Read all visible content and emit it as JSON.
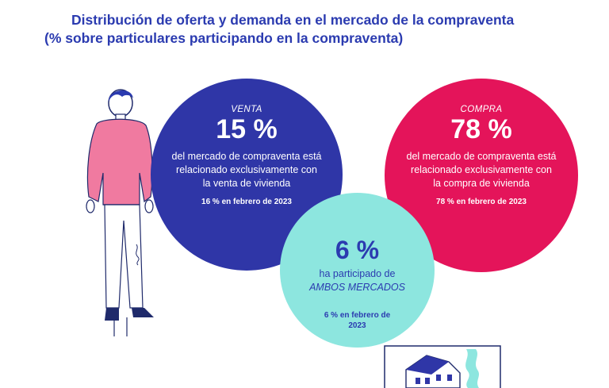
{
  "title": {
    "line1": "Distribución de oferta y demanda en el mercado de la compraventa",
    "line2": "(% sobre particulares participando en la compraventa)"
  },
  "chart_data": {
    "type": "venn",
    "title": "Distribución de oferta y demanda en el mercado de la compraventa",
    "subtitle": "(% sobre particulares participando en la compraventa)",
    "sets": [
      {
        "name": "VENTA",
        "value": 15,
        "value_label": "15 %",
        "description": "del mercado de compraventa está relacionado exclusivamente con la venta de vivienda",
        "previous_value": 16,
        "previous_label": "16 % en febrero de 2023"
      },
      {
        "name": "COMPRA",
        "value": 78,
        "value_label": "78 %",
        "description": "del mercado de compraventa está relacionado exclusivamente con la compra de vivienda",
        "previous_value": 78,
        "previous_label": "78 % en febrero de 2023"
      },
      {
        "name": "AMBOS MERCADOS",
        "value": 6,
        "value_label": "6 %",
        "description_prefix": "ha participado de",
        "description_emph": "AMBOS MERCADOS",
        "previous_value": 6,
        "previous_label": "6 % en febrero de 2023"
      }
    ]
  },
  "colors": {
    "venta": "#2f36a7",
    "compra": "#e4145a",
    "ambos": "#8de6df",
    "title": "#2b3bb0"
  },
  "icons": [
    "person-illustration",
    "house-illustration"
  ]
}
